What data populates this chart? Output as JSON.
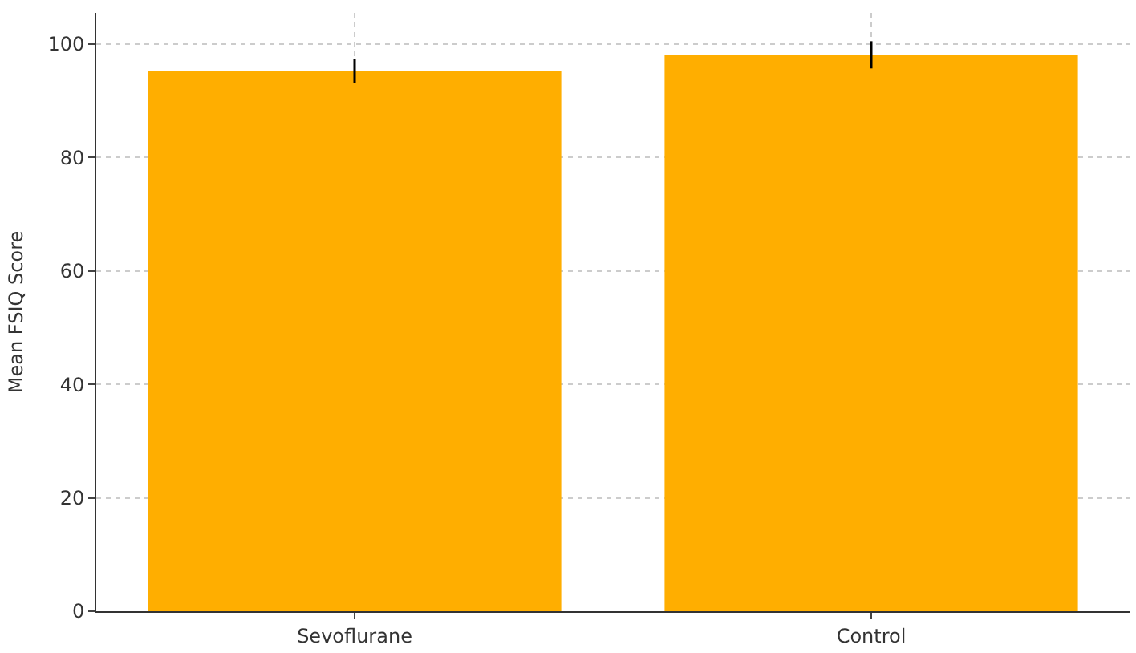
{
  "chart_data": {
    "type": "bar",
    "ylabel": "Mean FSIQ Score",
    "categories": [
      "Sevoflurane",
      "Control"
    ],
    "values": [
      95.3,
      98.1
    ],
    "errors": [
      2.1,
      2.4
    ],
    "color": "#ffae00",
    "ylim": [
      0,
      105.5
    ],
    "yticks": [
      0,
      20,
      40,
      60,
      80,
      100
    ],
    "grid": true
  }
}
